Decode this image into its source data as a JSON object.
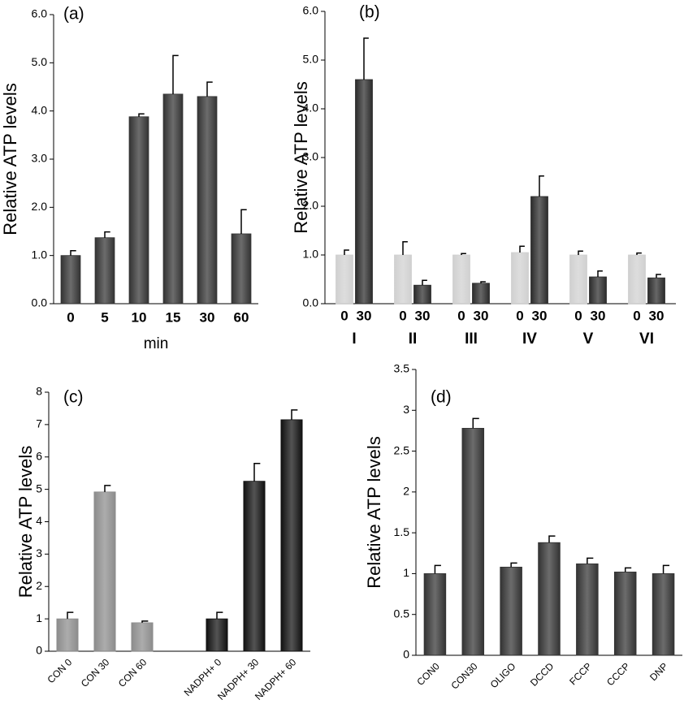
{
  "chart_data": [
    {
      "type": "bar",
      "panel_label": "(a)",
      "ylabel": "Relative ATP levels",
      "xlabel": "min",
      "categories": [
        "0",
        "5",
        "10",
        "15",
        "30",
        "60"
      ],
      "values": [
        1.0,
        1.37,
        3.88,
        4.35,
        4.3,
        1.45
      ],
      "errors": [
        0.1,
        0.12,
        0.06,
        0.8,
        0.3,
        0.5
      ],
      "color": "#333333",
      "ylim": [
        0,
        6
      ],
      "yticks": [
        {
          "value": 0,
          "label": "0.0"
        },
        {
          "value": 1,
          "label": "1.0"
        },
        {
          "value": 2,
          "label": "2.0"
        },
        {
          "value": 3,
          "label": "3.0"
        },
        {
          "value": 4,
          "label": "4.0"
        },
        {
          "value": 5,
          "label": "5.0"
        },
        {
          "value": 6,
          "label": "6.0"
        }
      ]
    },
    {
      "type": "grouped_bar",
      "panel_label": "(b)",
      "ylabel": "Relative ATP levels",
      "categories": [
        "I",
        "II",
        "III",
        "IV",
        "V",
        "VI"
      ],
      "series": [
        {
          "name": "0",
          "color": "#d0d0d0",
          "values": [
            1.0,
            1.0,
            1.0,
            1.05,
            1.0,
            1.0
          ],
          "errors": [
            0.1,
            0.27,
            0.03,
            0.13,
            0.08,
            0.04
          ]
        },
        {
          "name": "30",
          "color": "#2b2b2b",
          "values": [
            4.6,
            0.38,
            0.42,
            2.2,
            0.55,
            0.53
          ],
          "errors": [
            0.85,
            0.1,
            0.03,
            0.42,
            0.12,
            0.07
          ]
        }
      ],
      "ylim": [
        0,
        6
      ],
      "yticks": [
        {
          "value": 0,
          "label": "0.0"
        },
        {
          "value": 1,
          "label": "1.0"
        },
        {
          "value": 2,
          "label": "2.0"
        },
        {
          "value": 3,
          "label": "3.0"
        },
        {
          "value": 4,
          "label": "4.0"
        },
        {
          "value": 5,
          "label": "5.0"
        },
        {
          "value": 6,
          "label": "6.0"
        }
      ]
    },
    {
      "type": "bar",
      "panel_label": "(c)",
      "ylabel": "Relative ATP levels",
      "categories": [
        "CON 0",
        "CON 30",
        "CON 60",
        null,
        "NADPH+ 0",
        "NADPH+ 30",
        "NADPH+ 60"
      ],
      "values": [
        1.0,
        4.92,
        0.88,
        null,
        1.0,
        5.25,
        7.15
      ],
      "errors": [
        0.2,
        0.2,
        0.05,
        null,
        0.2,
        0.55,
        0.3
      ],
      "colors": [
        "#8c8c8c",
        "#8c8c8c",
        "#8c8c8c",
        null,
        "#111111",
        "#111111",
        "#111111"
      ],
      "ylim": [
        0,
        8
      ],
      "yticks": [
        0,
        1,
        2,
        3,
        4,
        5,
        6,
        7,
        8
      ]
    },
    {
      "type": "bar",
      "panel_label": "(d)",
      "ylabel": "Relative ATP levels",
      "categories": [
        "CON0",
        "CON30",
        "OLIGO",
        "DCCD",
        "FCCP",
        "CCCP",
        "DNP"
      ],
      "values": [
        1.0,
        2.78,
        1.08,
        1.38,
        1.12,
        1.02,
        1.0
      ],
      "errors": [
        0.1,
        0.12,
        0.05,
        0.08,
        0.07,
        0.05,
        0.1
      ],
      "color": "#333333",
      "ylim": [
        0,
        3.5
      ],
      "yticks": [
        0,
        0.5,
        1,
        1.5,
        2,
        2.5,
        3,
        3.5
      ]
    }
  ]
}
